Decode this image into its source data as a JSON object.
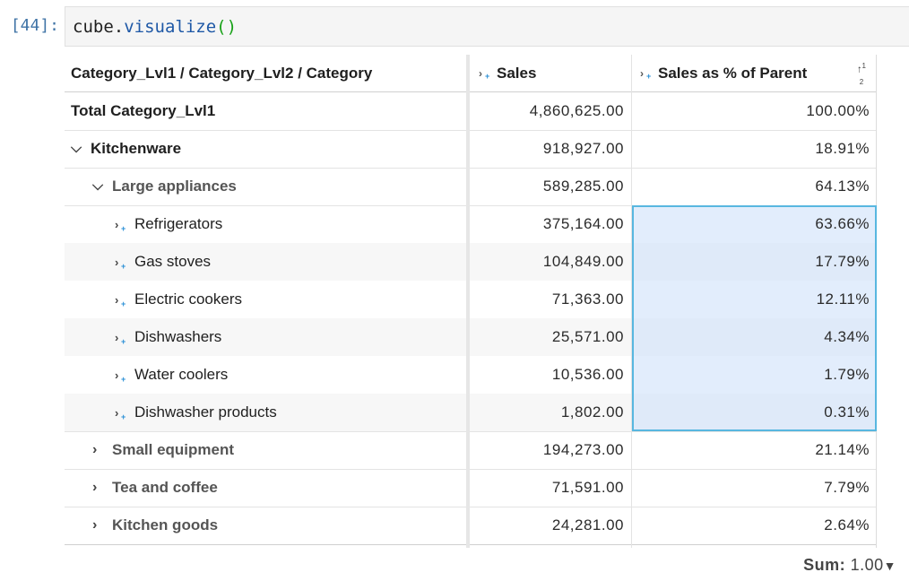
{
  "cell": {
    "prompt": "[44]:",
    "code_object": "cube",
    "code_dot": ".",
    "code_function": "visualize",
    "code_parens": "()"
  },
  "pivot": {
    "header": {
      "row_label": "Category_Lvl1 / Category_Lvl2 / Category",
      "col_sales": "Sales",
      "col_pct": "Sales as % of Parent"
    },
    "rows": [
      {
        "label": "Total Category_Lvl1",
        "sales": "4,860,625.00",
        "pct": "100.00%"
      },
      {
        "label": "Kitchenware",
        "sales": "918,927.00",
        "pct": "18.91%"
      },
      {
        "label": "Large appliances",
        "sales": "589,285.00",
        "pct": "64.13%"
      },
      {
        "label": "Refrigerators",
        "sales": "375,164.00",
        "pct": "63.66%"
      },
      {
        "label": "Gas stoves",
        "sales": "104,849.00",
        "pct": "17.79%"
      },
      {
        "label": "Electric cookers",
        "sales": "71,363.00",
        "pct": "12.11%"
      },
      {
        "label": "Dishwashers",
        "sales": "25,571.00",
        "pct": "4.34%"
      },
      {
        "label": "Water coolers",
        "sales": "10,536.00",
        "pct": "1.79%"
      },
      {
        "label": "Dishwasher products",
        "sales": "1,802.00",
        "pct": "0.31%"
      },
      {
        "label": "Small equipment",
        "sales": "194,273.00",
        "pct": "21.14%"
      },
      {
        "label": "Tea and coffee",
        "sales": "71,591.00",
        "pct": "7.79%"
      },
      {
        "label": "Kitchen goods",
        "sales": "24,281.00",
        "pct": "2.64%"
      }
    ]
  },
  "status": {
    "sum_label": "Sum:",
    "sum_value": "1.00"
  },
  "colors": {
    "selection_fill": "#d2e3fa",
    "selection_border": "#58b7e0",
    "prompt": "#3f73a6",
    "code_function": "#1e58a6",
    "code_parens": "#17a117"
  }
}
